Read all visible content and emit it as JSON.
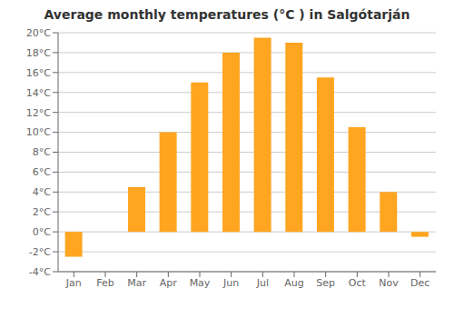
{
  "chart_data": {
    "type": "bar",
    "title": "Average monthly temperatures (°C ) in Salgótarján",
    "categories": [
      "Jan",
      "Feb",
      "Mar",
      "Apr",
      "May",
      "Jun",
      "Jul",
      "Aug",
      "Sep",
      "Oct",
      "Nov",
      "Dec"
    ],
    "values": [
      -2.5,
      0.0,
      4.5,
      10.0,
      15.0,
      18.0,
      19.5,
      19.0,
      15.5,
      10.5,
      4.0,
      -0.5
    ],
    "color": "#FFA520",
    "ylim": [
      -4,
      20
    ],
    "yticks": [
      {
        "value": -4,
        "label": "-4°C"
      },
      {
        "value": -2,
        "label": "-2°C"
      },
      {
        "value": 0,
        "label": "0°C"
      },
      {
        "value": 2,
        "label": "2°C"
      },
      {
        "value": 4,
        "label": "4°C"
      },
      {
        "value": 6,
        "label": "6°C"
      },
      {
        "value": 8,
        "label": "8°C"
      },
      {
        "value": 10,
        "label": "10°C"
      },
      {
        "value": 12,
        "label": "12°C"
      },
      {
        "value": 14,
        "label": "14°C"
      },
      {
        "value": 16,
        "label": "16°C"
      },
      {
        "value": 18,
        "label": "18°C"
      },
      {
        "value": 20,
        "label": "20°C"
      }
    ],
    "grid": true
  }
}
